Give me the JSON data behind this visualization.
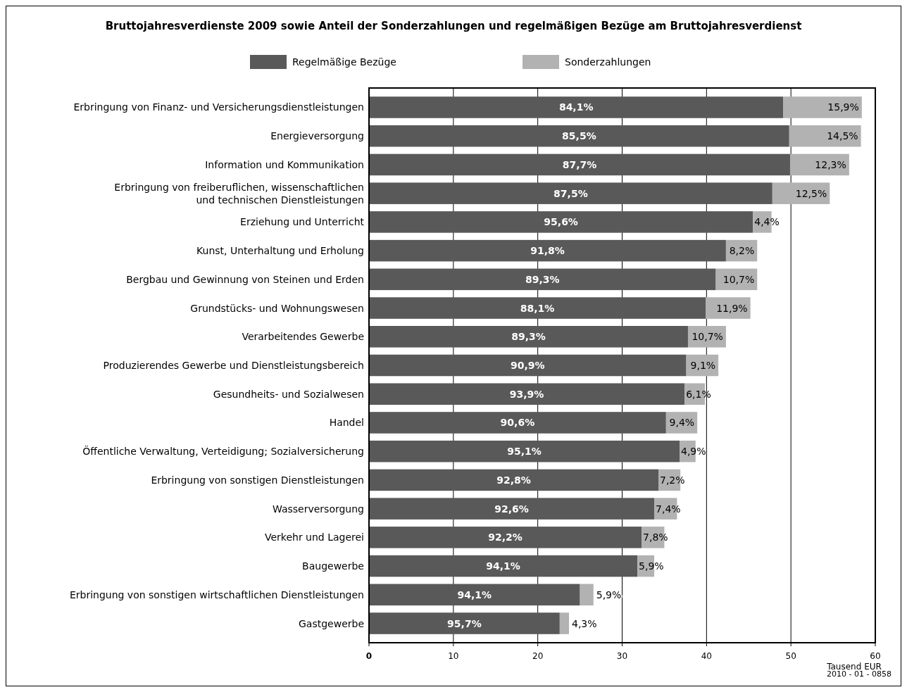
{
  "chart_data": {
    "type": "bar",
    "orientation": "horizontal",
    "stacked": true,
    "title": "Bruttojahresverdienste 2009 sowie Anteil der Sonderzahlungen und regelmäßigen Bezüge am Bruttojahresverdienst",
    "categories": [
      "Erbringung von Finanz- und Versicherungsdienstleistungen",
      "Energieversorgung",
      "Information und Kommunikation",
      "Erbringung von freiberuflichen, wissenschaftlichen\nund technischen Dienstleistungen",
      "Erziehung und Unterricht",
      "Kunst, Unterhaltung und Erholung",
      "Bergbau und Gewinnung von Steinen und Erden",
      "Grundstücks- und Wohnungswesen",
      "Verarbeitendes Gewerbe",
      "Produzierendes Gewerbe und Dienstleistungsbereich",
      "Gesundheits- und Sozialwesen",
      "Handel",
      "Öffentliche Verwaltung, Verteidigung; Sozialversicherung",
      "Erbringung von sonstigen Dienstleistungen",
      "Wasserversorgung",
      "Verkehr und Lagerei",
      "Baugewerbe",
      "Erbringung von sonstigen wirtschaftlichen Dienstleistungen",
      "Gastgewerbe"
    ],
    "series": [
      {
        "name": "Regelmäßige Bezüge",
        "color": "#595959",
        "values": [
          49.1,
          49.8,
          49.9,
          47.8,
          45.5,
          42.3,
          41.1,
          39.9,
          37.8,
          37.6,
          37.4,
          35.2,
          36.8,
          34.3,
          33.8,
          32.3,
          31.8,
          25.0,
          22.6
        ]
      },
      {
        "name": "Sonderzahlungen",
        "color": "#b2b2b2",
        "values": [
          9.3,
          8.5,
          7.0,
          6.8,
          2.2,
          3.7,
          4.9,
          5.3,
          4.5,
          3.8,
          2.4,
          3.7,
          1.9,
          2.6,
          2.7,
          2.7,
          2.0,
          1.6,
          1.1
        ]
      }
    ],
    "xlim": [
      0,
      60
    ],
    "xticks": [
      0,
      10,
      20,
      30,
      40,
      50,
      60
    ],
    "xlabel": "Tausend EUR",
    "grid": "x",
    "legend": "top",
    "annotations": [
      "2010 - 01 - 0858",
      {
        "text": "84,1%",
        "x": 24.55,
        "y": "Erbringung von Finanz- und Versicherungsdienstleistungen"
      },
      {
        "text": "85,5%",
        "x": 24.9,
        "y": "Energieversorgung"
      },
      {
        "text": "87,7%",
        "x": 24.95,
        "y": "Information und Kommunikation"
      },
      {
        "text": "87,5%",
        "x": 23.9,
        "y": "Erbringung von freiberuflichen, wissenschaftlichen\nund technischen Dienstleistungen"
      },
      {
        "text": "95,6%",
        "x": 22.75,
        "y": "Erziehung und Unterricht"
      },
      {
        "text": "91,8%",
        "x": 21.15,
        "y": "Kunst, Unterhaltung und Erholung"
      },
      {
        "text": "89,3%",
        "x": 20.55,
        "y": "Bergbau und Gewinnung von Steinen und Erden"
      },
      {
        "text": "88,1%",
        "x": 19.95,
        "y": "Grundstücks- und Wohnungswesen"
      },
      {
        "text": "89,3%",
        "x": 18.9,
        "y": "Verarbeitendes Gewerbe"
      },
      {
        "text": "90,9%",
        "x": 18.8,
        "y": "Produzierendes Gewerbe und Dienstleistungsbereich"
      },
      {
        "text": "93,9%",
        "x": 18.7,
        "y": "Gesundheits- und Sozialwesen"
      },
      {
        "text": "90,6%",
        "x": 17.6,
        "y": "Handel"
      },
      {
        "text": "95,1%",
        "x": 18.4,
        "y": "Öffentliche Verwaltung, Verteidigung; Sozialversicherung"
      },
      {
        "text": "92,8%",
        "x": 17.15,
        "y": "Erbringung von sonstigen Dienstleistungen"
      },
      {
        "text": "92,6%",
        "x": 16.9,
        "y": "Wasserversorgung"
      },
      {
        "text": "92,2%",
        "x": 16.15,
        "y": "Verkehr und Lagerei"
      },
      {
        "text": "94,1%",
        "x": 15.9,
        "y": "Baugewerbe"
      },
      {
        "text": "94,1%",
        "x": 12.5,
        "y": "Erbringung von sonstigen wirtschaftlichen Dienstleistungen"
      },
      {
        "text": "95,7%",
        "x": 11.3,
        "y": "Gastgewerbe"
      },
      {
        "text": "15,9%",
        "x": 58.4,
        "y": "Erbringung von Finanz- und Versicherungsdienstleistungen"
      },
      {
        "text": "14,5%",
        "x": 58.3,
        "y": "Energieversorgung"
      },
      {
        "text": "12,3%",
        "x": 56.9,
        "y": "Information und Kommunikation"
      },
      {
        "text": "12,5%",
        "x": 54.6,
        "y": "Erbringung von freiberuflichen, wissenschaftlichen\nund technischen Dienstleistungen"
      },
      {
        "text": "4,4%",
        "x": 47.7,
        "y": "Erziehung und Unterricht"
      },
      {
        "text": "8,2%",
        "x": 46.0,
        "y": "Kunst, Unterhaltung und Erholung"
      },
      {
        "text": "10,7%",
        "x": 46.0,
        "y": "Bergbau und Gewinnung von Steinen und Erden"
      },
      {
        "text": "11,9%",
        "x": 45.2,
        "y": "Grundstücks- und Wohnungswesen"
      },
      {
        "text": "10,7%",
        "x": 42.3,
        "y": "Verarbeitendes Gewerbe"
      },
      {
        "text": "9,1%",
        "x": 41.4,
        "y": "Produzierendes Gewerbe und Dienstleistungsbereich"
      },
      {
        "text": "6,1%",
        "x": 39.8,
        "y": "Gesundheits- und Sozialwesen"
      },
      {
        "text": "9,4%",
        "x": 38.9,
        "y": "Handel"
      },
      {
        "text": "4,9%",
        "x": 38.7,
        "y": "Öffentliche Verwaltung, Verteidigung; Sozialversicherung"
      },
      {
        "text": "7,2%",
        "x": 36.9,
        "y": "Erbringung von sonstigen Dienstleistungen"
      },
      {
        "text": "7,4%",
        "x": 36.5,
        "y": "Wasserversorgung"
      },
      {
        "text": "7,8%",
        "x": 35.0,
        "y": "Verkehr und Lagerei"
      },
      {
        "text": "5,9%",
        "x": 33.8,
        "y": "Baugewerbe"
      },
      {
        "text": "5,9%",
        "x": 26.6,
        "y": "Erbringung von sonstigen wirtschaftlichen Dienstleistungen"
      },
      {
        "text": "4,3%",
        "x": 23.7,
        "y": "Gastgewerbe"
      }
    ]
  }
}
